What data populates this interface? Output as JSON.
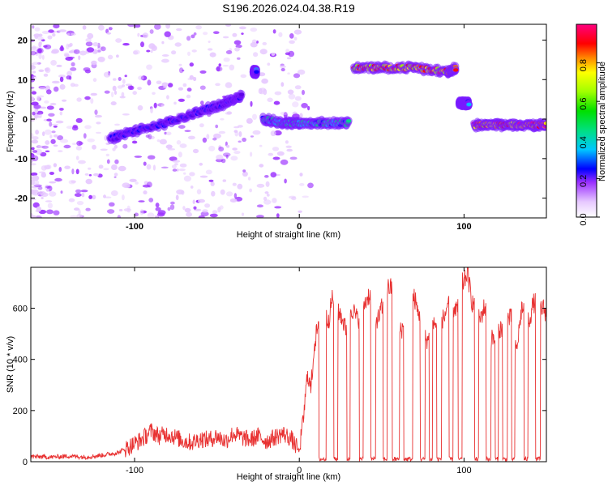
{
  "title": "S196.2026.024.04.38.R19",
  "chart_data": [
    {
      "type": "heatmap",
      "name": "spectrogram",
      "xlabel": "Height of straight line (km)",
      "ylabel": "Frequency (Hz)",
      "xlim": [
        -163,
        150
      ],
      "ylim": [
        -25,
        24
      ],
      "xticks": [
        -100,
        0,
        100
      ],
      "xtick_labels": [
        "-100",
        "0",
        "100"
      ],
      "yticks": [
        -20,
        -10,
        0,
        10,
        20
      ],
      "ytick_labels": [
        "-20",
        "-10",
        "0",
        "10",
        "20"
      ],
      "colorbar": {
        "label": "Normalized spectral amplitude",
        "range": [
          0,
          1
        ],
        "ticks": [
          0.0,
          0.2,
          0.4,
          0.6,
          0.8
        ],
        "tick_labels": [
          "0.0",
          "0.2",
          "0.4",
          "0.6",
          "0.8"
        ],
        "colors": [
          "#ffffff",
          "#e6c8ff",
          "#9b30ff",
          "#5a00e6",
          "#0000ff",
          "#00c8ff",
          "#00e080",
          "#00e000",
          "#a0ff00",
          "#ffff00",
          "#ff8000",
          "#ff0000",
          "#ff0080"
        ]
      },
      "tracks": [
        {
          "name": "rising-band",
          "x": [
            -115,
            -100,
            -80,
            -60,
            -45,
            -35
          ],
          "freq": [
            -5,
            -3,
            -1,
            2,
            4,
            6
          ],
          "amplitude": 0.3
        },
        {
          "name": "spike-a",
          "x": [
            -28,
            -26
          ],
          "freq": [
            12,
            12
          ],
          "amplitude": 0.35
        },
        {
          "name": "band-b",
          "x": [
            -22,
            -10,
            0,
            15,
            30
          ],
          "freq": [
            0,
            -1,
            -1,
            -1,
            -1
          ],
          "amplitude": 0.45
        },
        {
          "name": "band-c",
          "x": [
            33,
            50,
            70,
            90,
            95
          ],
          "freq": [
            13,
            13,
            13,
            12,
            13
          ],
          "amplitude": 0.85
        },
        {
          "name": "band-d",
          "x": [
            97,
            103
          ],
          "freq": [
            4,
            4
          ],
          "amplitude": 0.4
        },
        {
          "name": "band-e",
          "x": [
            106,
            120,
            135,
            150
          ],
          "freq": [
            -1.5,
            -1.5,
            -1.5,
            -1.5
          ],
          "amplitude": 0.9
        }
      ]
    },
    {
      "type": "line",
      "name": "snr",
      "xlabel": "Height of straight line (km)",
      "ylabel": "SNR (10 * v/v)",
      "xlim": [
        -163,
        150
      ],
      "ylim": [
        0,
        760
      ],
      "xticks": [
        -100,
        0,
        100
      ],
      "xtick_labels": [
        "-100",
        "0",
        "100"
      ],
      "yticks": [
        0,
        200,
        400,
        600
      ],
      "ytick_labels": [
        "0",
        "200",
        "400",
        "600"
      ],
      "color": "#e83030",
      "x": [
        -163,
        -150,
        -140,
        -130,
        -120,
        -110,
        -100,
        -95,
        -90,
        -85,
        -80,
        -75,
        -70,
        -65,
        -60,
        -55,
        -50,
        -45,
        -40,
        -35,
        -30,
        -25,
        -20,
        -15,
        -10,
        -5,
        0,
        3,
        5,
        7,
        9,
        11,
        13,
        15,
        18,
        20,
        22,
        25,
        28,
        30,
        32,
        35,
        38,
        40,
        42,
        45,
        48,
        50,
        52,
        55,
        58,
        60,
        62,
        65,
        68,
        70,
        72,
        75,
        78,
        80,
        82,
        85,
        88,
        90,
        92,
        95,
        98,
        100,
        102,
        105,
        108,
        110,
        112,
        115,
        118,
        120,
        122,
        125,
        128,
        130,
        132,
        135,
        138,
        140,
        142,
        145,
        148,
        150
      ],
      "y": [
        20,
        18,
        22,
        18,
        25,
        35,
        70,
        90,
        120,
        100,
        110,
        95,
        80,
        75,
        90,
        85,
        100,
        80,
        110,
        95,
        85,
        100,
        80,
        95,
        110,
        90,
        40,
        200,
        350,
        280,
        450,
        520,
        10,
        10,
        560,
        640,
        10,
        580,
        520,
        10,
        600,
        560,
        10,
        620,
        650,
        10,
        560,
        600,
        10,
        680,
        10,
        10,
        520,
        10,
        10,
        640,
        580,
        10,
        480,
        10,
        540,
        10,
        560,
        620,
        10,
        600,
        10,
        700,
        740,
        620,
        10,
        560,
        600,
        10,
        480,
        10,
        520,
        10,
        560,
        10,
        440,
        600,
        10,
        560,
        620,
        10,
        600,
        580
      ]
    }
  ]
}
